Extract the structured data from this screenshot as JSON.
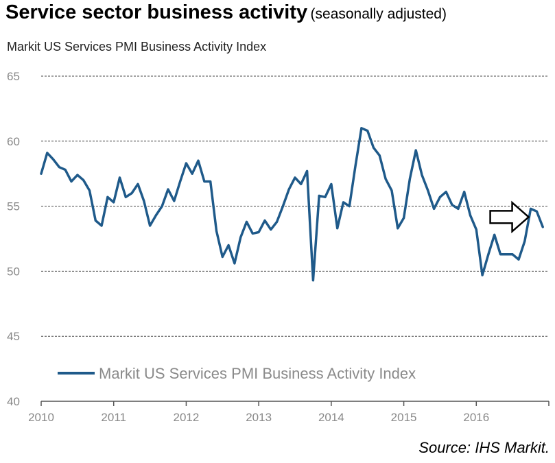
{
  "header": {
    "title": "Service sector business activity",
    "title_note": "(seasonally adjusted)",
    "subtitle": "Markit US Services PMI Business Activity Index"
  },
  "source": "Source: IHS Markit.",
  "colors": {
    "series": "#1f5a8a",
    "grid": "#444444",
    "axis": "#555555",
    "arrow_fill": "#ffffff",
    "arrow_stroke": "#000000"
  },
  "annotation": {
    "icon": "right-arrow-icon",
    "points_to": "2016-10"
  },
  "chart_data": {
    "type": "line",
    "title": "Service sector business activity",
    "subtitle": "Markit US Services PMI Business Activity Index",
    "xlabel": "",
    "ylabel": "",
    "xlim": [
      2010,
      2017
    ],
    "ylim": [
      40,
      65
    ],
    "yticks": [
      40,
      45,
      50,
      55,
      60,
      65
    ],
    "xticks": [
      2010,
      2011,
      2012,
      2013,
      2014,
      2015,
      2016
    ],
    "grid": true,
    "legend": "lower-left",
    "series": [
      {
        "name": "Markit US Services PMI Business Activity Index",
        "x_start": "2010-01",
        "frequency": "monthly",
        "values": [
          57.5,
          59.1,
          58.6,
          58.0,
          57.8,
          56.9,
          57.4,
          57.0,
          56.2,
          53.9,
          53.5,
          55.7,
          55.3,
          57.2,
          55.7,
          56.0,
          56.7,
          55.4,
          53.5,
          54.3,
          55.0,
          56.3,
          55.4,
          56.9,
          58.3,
          57.5,
          58.5,
          56.9,
          56.9,
          53.1,
          51.1,
          52.0,
          50.6,
          52.6,
          53.8,
          52.9,
          53.0,
          53.9,
          53.2,
          53.8,
          55.0,
          56.3,
          57.2,
          56.7,
          57.7,
          49.3,
          55.8,
          55.7,
          56.7,
          53.3,
          55.3,
          55.0,
          58.1,
          61.0,
          60.8,
          59.5,
          58.9,
          57.1,
          56.2,
          53.3,
          54.1,
          57.1,
          59.3,
          57.4,
          56.2,
          54.8,
          55.7,
          56.1,
          55.1,
          54.8,
          56.1,
          54.3,
          53.2,
          49.7,
          51.3,
          52.8,
          51.3,
          51.3,
          51.3,
          50.9,
          52.3,
          54.8,
          54.6,
          53.4
        ]
      }
    ]
  }
}
